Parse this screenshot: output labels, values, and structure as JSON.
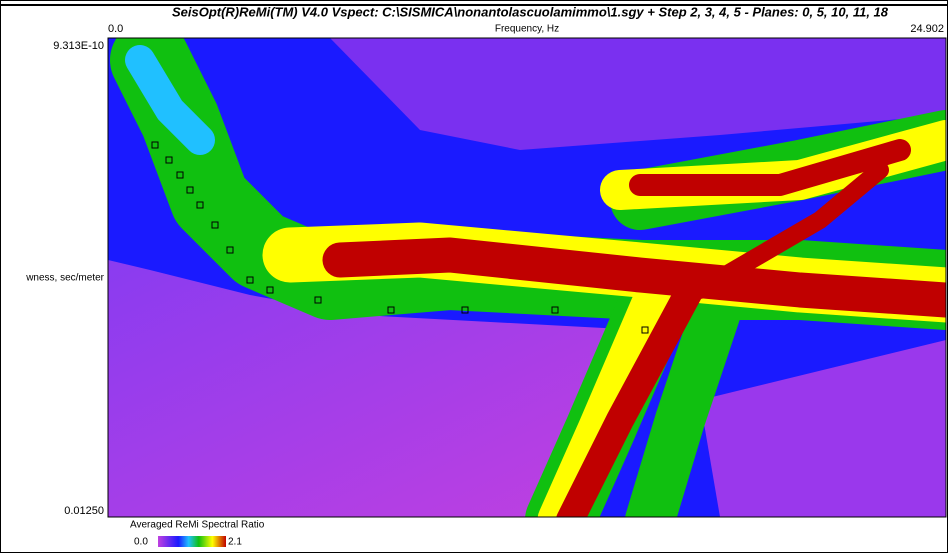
{
  "window": {
    "title": "SeisOpt(R)ReMi(TM) V4.0 Vspect: C:\\SISMICA\\nonantolascuolamimmo\\1.sgy + Step 2, 3, 4, 5 - Planes: 0, 5, 10, 11, 18"
  },
  "plot": {
    "x_axis": {
      "min_label": "0.0",
      "title": "Frequency, Hz",
      "max_label": "24.902"
    },
    "y_axis": {
      "top_label": "9.313E-10",
      "title": "wness, sec/meter",
      "bottom_label": "0.01250"
    }
  },
  "colorbar": {
    "title": "Averaged ReMi Spectral Ratio",
    "min_label": "0.0",
    "max_label": "2.1"
  }
}
